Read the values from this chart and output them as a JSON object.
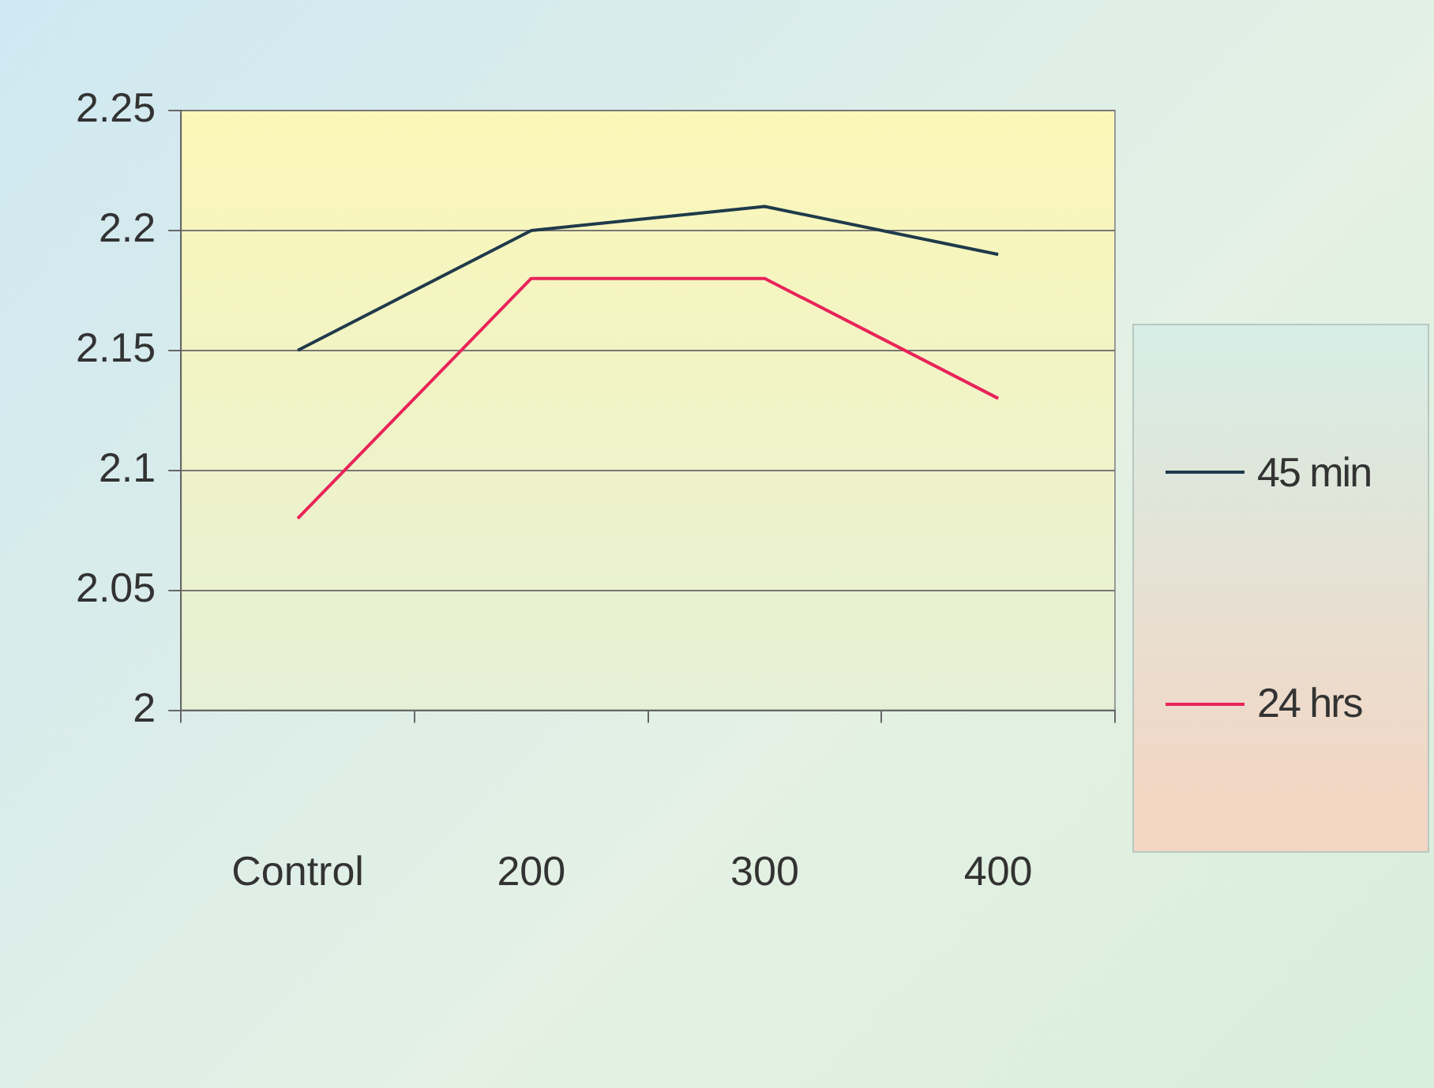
{
  "chart_data": {
    "type": "line",
    "categories": [
      "Control",
      "200",
      "300",
      "400"
    ],
    "series": [
      {
        "name": "45 min",
        "color": "#1f3a4a",
        "values": [
          2.15,
          2.2,
          2.21,
          2.19
        ]
      },
      {
        "name": "24 hrs",
        "color": "#e8245a",
        "values": [
          2.08,
          2.18,
          2.18,
          2.13
        ]
      }
    ],
    "ylim": [
      2,
      2.25
    ],
    "yticks": [
      2,
      2.05,
      2.1,
      2.15,
      2.2,
      2.25
    ],
    "grid": "y",
    "legend": "right",
    "marker": "none",
    "line_style": "solid"
  }
}
